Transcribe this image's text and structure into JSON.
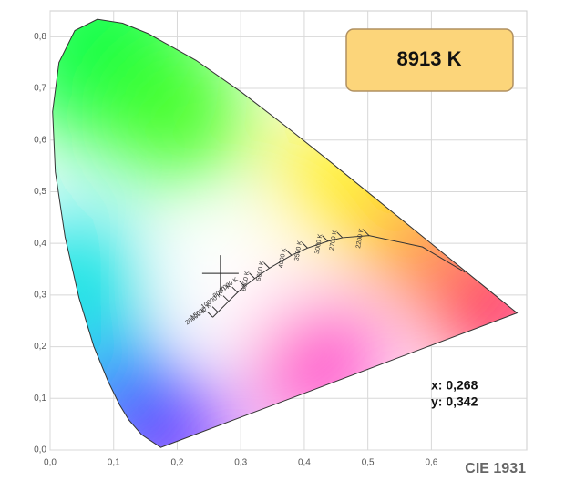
{
  "chart_data": {
    "type": "chromaticity",
    "title": "CIE 1931",
    "cct": {
      "value": 8913,
      "label": "8913 K"
    },
    "readout": [
      {
        "value": 0.268,
        "label": "x: 0,268"
      },
      {
        "value": 0.342,
        "label": "y: 0,342"
      }
    ],
    "xlim": [
      0,
      0.75
    ],
    "ylim": [
      0,
      0.85
    ],
    "xticks": [
      {
        "value": 0,
        "label": "0,0"
      },
      {
        "value": 0.1,
        "label": "0,1"
      },
      {
        "value": 0.2,
        "label": "0,2"
      },
      {
        "value": 0.3,
        "label": "0,3"
      },
      {
        "value": 0.4,
        "label": "0,4"
      },
      {
        "value": 0.5,
        "label": "0,5"
      },
      {
        "value": 0.6,
        "label": "0,6"
      }
    ],
    "yticks": [
      {
        "value": 0,
        "label": "0,0"
      },
      {
        "value": 0.1,
        "label": "0,1"
      },
      {
        "value": 0.2,
        "label": "0,2"
      },
      {
        "value": 0.3,
        "label": "0,3"
      },
      {
        "value": 0.4,
        "label": "0,4"
      },
      {
        "value": 0.5,
        "label": "0,5"
      },
      {
        "value": 0.6,
        "label": "0,6"
      },
      {
        "value": 0.7,
        "label": "0,7"
      },
      {
        "value": 0.8,
        "label": "0,8"
      }
    ],
    "grid": true,
    "spectral_locus": {
      "x": [
        0.1741,
        0.144,
        0.1241,
        0.1096,
        0.0913,
        0.0687,
        0.0454,
        0.0235,
        0.0082,
        0.0039,
        0.0139,
        0.0389,
        0.0743,
        0.1142,
        0.1547,
        0.2296,
        0.3016,
        0.3731,
        0.4441,
        0.5125,
        0.5752,
        0.627,
        0.6915,
        0.7347
      ],
      "y": [
        0.005,
        0.0297,
        0.0578,
        0.0868,
        0.1327,
        0.2007,
        0.295,
        0.4127,
        0.5384,
        0.6548,
        0.7502,
        0.812,
        0.8338,
        0.8262,
        0.8059,
        0.7543,
        0.6923,
        0.6245,
        0.5547,
        0.4866,
        0.4242,
        0.3725,
        0.3083,
        0.2653
      ]
    },
    "planckian_locus": {
      "labels": [
        null,
        null,
        "2200 K",
        "2700 K",
        "3000 K",
        "3500 K",
        "4000 K",
        "5000 K",
        "6000 K",
        "7000 K",
        "8000 K",
        "10000 K",
        "15000 K",
        "20000 K"
      ],
      "x": [
        0.653,
        0.586,
        0.502,
        0.46,
        0.437,
        0.405,
        0.38,
        0.345,
        0.322,
        0.306,
        0.295,
        0.281,
        0.264,
        0.256
      ],
      "y": [
        0.344,
        0.393,
        0.415,
        0.411,
        0.404,
        0.391,
        0.377,
        0.352,
        0.332,
        0.317,
        0.305,
        0.288,
        0.267,
        0.257
      ]
    }
  }
}
